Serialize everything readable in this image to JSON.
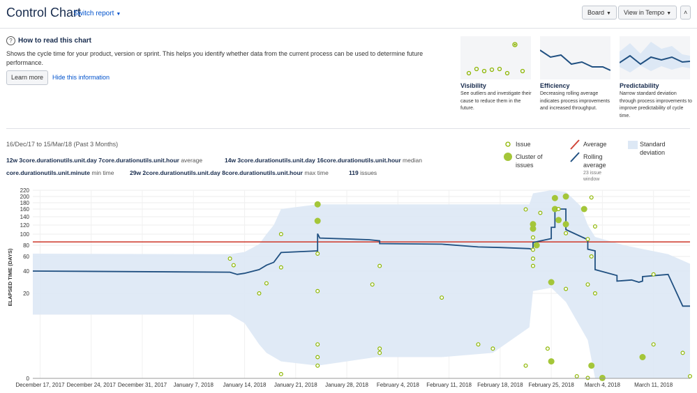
{
  "header": {
    "title": "Control Chart",
    "switch_report": "Switch report",
    "board_button": "Board",
    "tempo_button": "View in Tempo",
    "collapse_glyph": "˄"
  },
  "info": {
    "heading": "How to read this chart",
    "description": "Shows the cycle time for your product, version or sprint. This helps you identify whether data from the current process can be used to determine future performance.",
    "learn_more": "Learn more",
    "hide_info": "Hide this information",
    "cards": [
      {
        "title": "Visibility",
        "description": "See outliers and investigate their cause to reduce them in the future."
      },
      {
        "title": "Efficiency",
        "description": "Decreasing rolling average indicates process improvements and increased throughput."
      },
      {
        "title": "Predictability",
        "description": "Narrow standard deviation through process improvements to improve predictability of cycle time."
      }
    ]
  },
  "stats": {
    "date_range": "16/Dec/17 to 15/Mar/18 (Past 3 Months)",
    "average_value": "12w 3core.durationutils.unit.day 7core.durationutils.unit.hour",
    "average_label": "average",
    "median_value": "14w 3core.durationutils.unit.day 16core.durationutils.unit.hour",
    "median_label": "median",
    "min_value": "core.durationutils.unit.minute",
    "min_label": "min time",
    "max_value": "29w 2core.durationutils.unit.day 8core.durationutils.unit.hour",
    "max_label": "max time",
    "issues_value": "119",
    "issues_label": "issues"
  },
  "legend": {
    "issue": "Issue",
    "cluster": "Cluster of issues",
    "average": "Average",
    "rolling": "Rolling average",
    "rolling_window": "23 issue window",
    "stddev": "Standard deviation"
  },
  "colors": {
    "issue": "#8db600",
    "cluster_fill": "#a4c639",
    "average": "#d04437",
    "rolling": "#205081",
    "stddev": "#dde8f5"
  },
  "chart_data": {
    "type": "scatter",
    "title": "",
    "ylabel": "ELAPSED TIME (DAYS)",
    "xlabel": "",
    "x_range_days": [
      -1,
      89
    ],
    "x_ticks": [
      {
        "label": "December 17, 2017",
        "day": 0
      },
      {
        "label": "December 24, 2017",
        "day": 7
      },
      {
        "label": "December 31, 2017",
        "day": 14
      },
      {
        "label": "January 7, 2018",
        "day": 21
      },
      {
        "label": "January 14, 2018",
        "day": 28
      },
      {
        "label": "January 21, 2018",
        "day": 35
      },
      {
        "label": "January 28, 2018",
        "day": 42
      },
      {
        "label": "February 4, 2018",
        "day": 49
      },
      {
        "label": "February 11, 2018",
        "day": 56
      },
      {
        "label": "February 18, 2018",
        "day": 63
      },
      {
        "label": "February 25, 2018",
        "day": 70
      },
      {
        "label": "March 4, 2018",
        "day": 77
      },
      {
        "label": "March 11, 2018",
        "day": 84
      }
    ],
    "y_ticks": [
      0,
      20,
      40,
      60,
      80,
      100,
      120,
      140,
      160,
      180,
      200,
      220
    ],
    "y_range": [
      0,
      220
    ],
    "average": 86,
    "issues": [
      [
        26,
        57
      ],
      [
        26.5,
        48
      ],
      [
        30,
        20
      ],
      [
        31,
        29
      ],
      [
        33,
        100
      ],
      [
        33,
        45
      ],
      [
        33,
        1
      ],
      [
        38,
        65
      ],
      [
        38,
        22
      ],
      [
        38,
        8
      ],
      [
        38,
        5
      ],
      [
        38,
        3
      ],
      [
        45.5,
        28
      ],
      [
        46.5,
        47
      ],
      [
        46.5,
        7
      ],
      [
        46.5,
        6
      ],
      [
        55,
        19
      ],
      [
        60,
        8
      ],
      [
        62,
        7
      ],
      [
        66.5,
        159
      ],
      [
        66.5,
        3
      ],
      [
        67.5,
        94
      ],
      [
        67.5,
        72
      ],
      [
        67.5,
        57
      ],
      [
        67.5,
        47
      ],
      [
        68.5,
        150
      ],
      [
        69.5,
        7
      ],
      [
        71,
        160
      ],
      [
        72,
        102
      ],
      [
        72,
        24
      ],
      [
        73.5,
        0.5
      ],
      [
        75,
        0.1
      ],
      [
        75,
        91
      ],
      [
        75,
        28
      ],
      [
        75.5,
        197
      ],
      [
        75.5,
        60
      ],
      [
        76,
        20
      ],
      [
        76,
        117
      ],
      [
        84,
        37
      ],
      [
        84,
        8
      ],
      [
        88,
        6
      ],
      [
        89,
        0.5
      ]
    ],
    "clusters": [
      [
        38,
        175
      ],
      [
        38,
        130
      ],
      [
        67.5,
        122
      ],
      [
        67.5,
        112
      ],
      [
        68,
        80
      ],
      [
        70,
        30
      ],
      [
        70,
        4
      ],
      [
        70.5,
        160
      ],
      [
        70.5,
        195
      ],
      [
        71,
        132
      ],
      [
        72,
        200
      ],
      [
        72,
        122
      ],
      [
        74.5,
        160
      ],
      [
        75.5,
        3
      ],
      [
        77,
        0.1
      ],
      [
        82.5,
        5
      ]
    ],
    "rolling_average": [
      [
        -1,
        40
      ],
      [
        26,
        39
      ],
      [
        27,
        37
      ],
      [
        28,
        38
      ],
      [
        30,
        42
      ],
      [
        31,
        48
      ],
      [
        32,
        52
      ],
      [
        33,
        67
      ],
      [
        38,
        70
      ],
      [
        38,
        101
      ],
      [
        38.3,
        93
      ],
      [
        45,
        90
      ],
      [
        46.5,
        88
      ],
      [
        46.5,
        83
      ],
      [
        55,
        82
      ],
      [
        60,
        77
      ],
      [
        63,
        76
      ],
      [
        67,
        74
      ],
      [
        67.5,
        72
      ],
      [
        67.5,
        85
      ],
      [
        70,
        92
      ],
      [
        70,
        115
      ],
      [
        70.5,
        115
      ],
      [
        70.5,
        160
      ],
      [
        72,
        160
      ],
      [
        72,
        110
      ],
      [
        75,
        90
      ],
      [
        75,
        73
      ],
      [
        76,
        70
      ],
      [
        76,
        42
      ],
      [
        79,
        36
      ],
      [
        79,
        31
      ],
      [
        81,
        32
      ],
      [
        82,
        30
      ],
      [
        82.5,
        31
      ],
      [
        82.5,
        35
      ],
      [
        86,
        37
      ],
      [
        88,
        17
      ],
      [
        89,
        17
      ]
    ],
    "stddev_band": {
      "days": [
        -1,
        26,
        28,
        30,
        31,
        32,
        33,
        38,
        46,
        55,
        62,
        67,
        67.5,
        70,
        72,
        74,
        75,
        76,
        80,
        86,
        89
      ],
      "upper": [
        65,
        64,
        68,
        82,
        100,
        120,
        160,
        175,
        175,
        175,
        175,
        175,
        210,
        230,
        215,
        170,
        120,
        95,
        80,
        64,
        50
      ],
      "lower": [
        15,
        15,
        13,
        8,
        6,
        5,
        4,
        3,
        5,
        5,
        6,
        12,
        22,
        25,
        18,
        12,
        9,
        0,
        0,
        0,
        0
      ]
    }
  }
}
